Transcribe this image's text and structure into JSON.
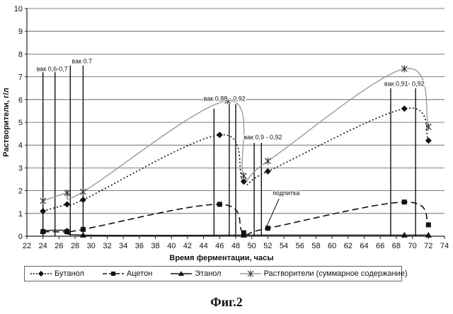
{
  "chart_data": {
    "type": "line",
    "title": "",
    "xlabel": "Время ферментации, часы",
    "ylabel": "Растворители, г/л",
    "xlim": [
      22,
      74
    ],
    "ylim": [
      0,
      10
    ],
    "x_ticks": [
      22,
      24,
      26,
      28,
      30,
      32,
      34,
      36,
      38,
      40,
      42,
      44,
      46,
      48,
      50,
      52,
      54,
      56,
      58,
      60,
      62,
      64,
      66,
      68,
      70,
      72,
      74
    ],
    "y_ticks": [
      0,
      1,
      2,
      3,
      4,
      5,
      6,
      7,
      8,
      9,
      10
    ],
    "grid": "horizontal",
    "legend_position": "bottom",
    "series": [
      {
        "name": "Бутанол",
        "marker": "diamond",
        "style": "dotted",
        "color": "#111111",
        "x": [
          24,
          27,
          29,
          46,
          49,
          52,
          69,
          72
        ],
        "y": [
          1.1,
          1.4,
          1.6,
          4.45,
          2.4,
          2.85,
          5.6,
          4.2
        ]
      },
      {
        "name": "Ацетон",
        "marker": "square",
        "style": "dashed",
        "color": "#111111",
        "x": [
          24,
          27,
          29,
          46,
          49,
          52,
          69,
          72
        ],
        "y": [
          0.2,
          0.2,
          0.3,
          1.4,
          0.15,
          0.35,
          1.5,
          0.5
        ]
      },
      {
        "name": "Этанол",
        "marker": "triangle",
        "style": "solid",
        "color": "#111111",
        "x": [
          24,
          27,
          29,
          49,
          69,
          72
        ],
        "y": [
          0.25,
          0.25,
          0.05,
          0.05,
          0.05,
          0.05
        ]
      },
      {
        "name": "Растворители (суммарное содержание)",
        "marker": "asterisk",
        "style": "solid",
        "color": "#9a9a9a",
        "x": [
          24,
          27,
          29,
          47,
          49,
          52,
          69,
          72
        ],
        "y": [
          1.55,
          1.9,
          1.95,
          5.95,
          2.65,
          3.3,
          7.35,
          4.8
        ]
      }
    ],
    "vertical_markers": [
      {
        "x": 24.0,
        "top": 7.2
      },
      {
        "x": 25.5,
        "top": 7.2
      },
      {
        "x": 27.4,
        "top": 7.5
      },
      {
        "x": 29.0,
        "top": 7.5
      },
      {
        "x": 45.3,
        "top": 5.6
      },
      {
        "x": 47.2,
        "top": 5.8
      },
      {
        "x": 48.0,
        "top": 5.8
      },
      {
        "x": 50.3,
        "top": 4.1
      },
      {
        "x": 51.2,
        "top": 4.1
      },
      {
        "x": 67.3,
        "top": 6.5
      },
      {
        "x": 70.4,
        "top": 6.5
      }
    ],
    "annotations": [
      {
        "text": "вак 0,6-0,7",
        "x": 23.2,
        "y": 7.25
      },
      {
        "text": "вак 0.7",
        "x": 27.6,
        "y": 7.6
      },
      {
        "text": "вак 0,88 - 0,92",
        "x": 44.0,
        "y": 5.95
      },
      {
        "text": "вак 0,9 - 0,92",
        "x": 49.0,
        "y": 4.25
      },
      {
        "text": "вак 0,91- 0,92",
        "x": 66.5,
        "y": 6.6
      },
      {
        "text": "подпитка",
        "x": 52.6,
        "y": 1.8
      }
    ],
    "pointer_line": {
      "from_x": 53.4,
      "from_y": 1.65,
      "to_x": 51.7,
      "to_y": 0.3
    }
  },
  "legend_labels": {
    "butanol": "Бутанол",
    "acetone": "Ацетон",
    "ethanol": "Этанол",
    "solvents": "Растворители (суммарное содержание)"
  },
  "figure_caption": "Фиг.2"
}
